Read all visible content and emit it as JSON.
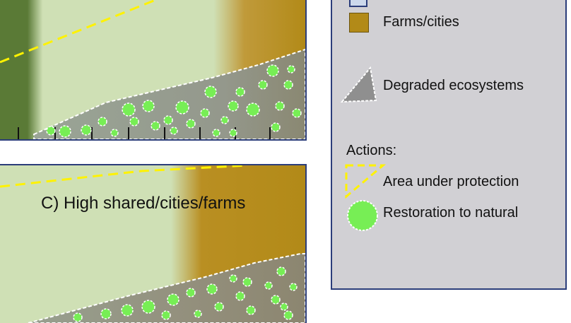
{
  "panels": {
    "c": {
      "label": "C) High shared/cities/farms"
    }
  },
  "legend": {
    "items": [
      {
        "label": "",
        "icon": "natural-swatch-icon",
        "color": "#ccd8ec"
      },
      {
        "label": "Farms/cities",
        "icon": "farms-swatch-icon",
        "color": "#b28a18"
      },
      {
        "label": "Degraded ecosystems",
        "icon": "degraded-ecosystem-icon",
        "color": "#8f8f8f"
      }
    ],
    "actions_title": "Actions:",
    "actions": [
      {
        "label": "Area under protection",
        "icon": "protection-dashed-icon",
        "color": "#fff200"
      },
      {
        "label": "Restoration to natural",
        "icon": "restoration-blob-icon",
        "color": "#77ee55"
      }
    ]
  },
  "colors": {
    "dark_forest": "#5a7a36",
    "shared_land": "#cfe0b5",
    "farms": "#b28a18",
    "degraded": "#8f918a",
    "protection_line": "#fff200",
    "border": "#2b3d7a"
  }
}
